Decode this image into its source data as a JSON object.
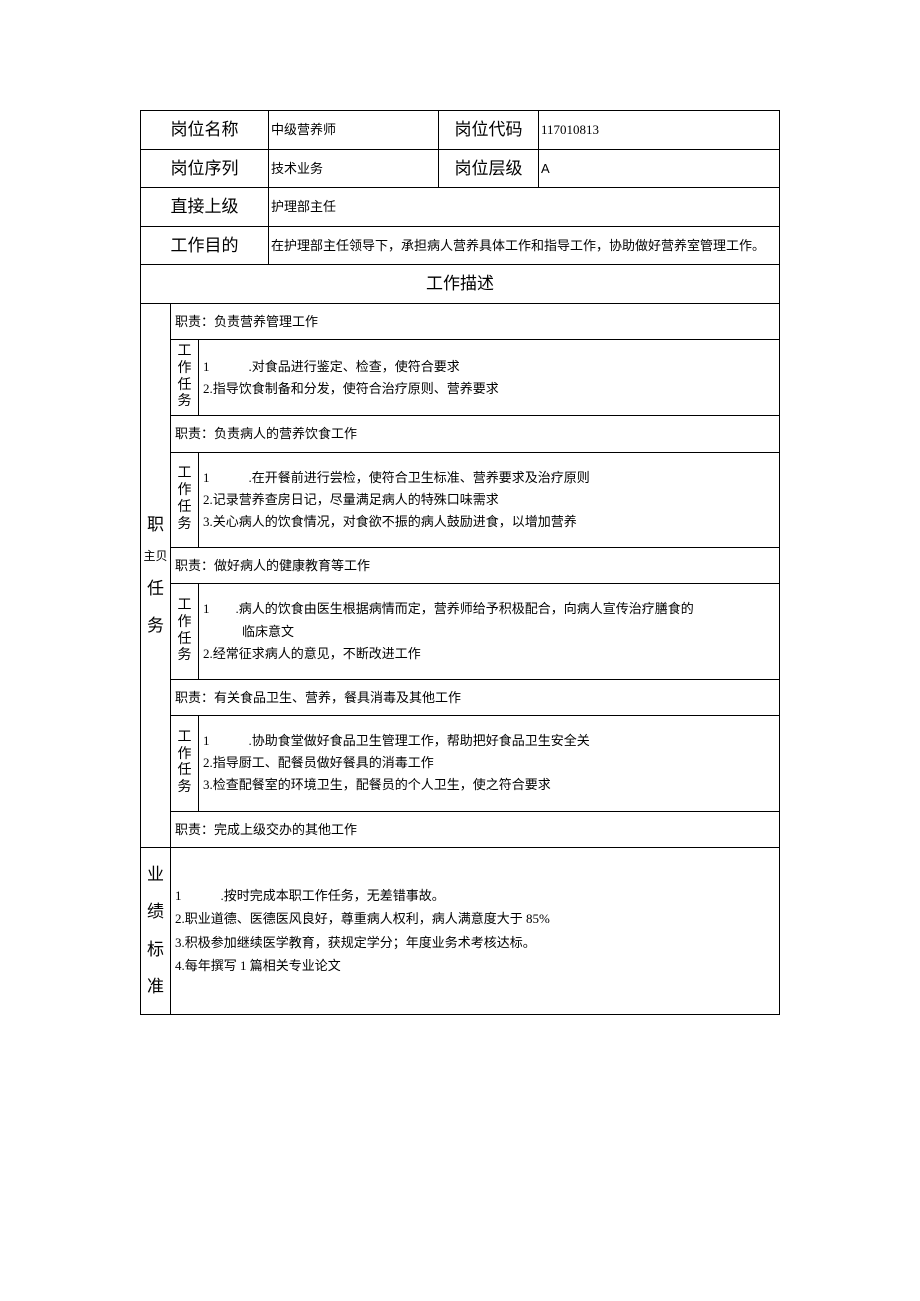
{
  "header": {
    "positionNameLabel": "岗位名称",
    "positionNameValue": "中级营养师",
    "positionCodeLabel": "岗位代码",
    "positionCodeValue": "117010813",
    "positionSeriesLabel": "岗位序列",
    "positionSeriesValue": "技术业务",
    "positionLevelLabel": "岗位层级",
    "positionLevelValue": "A",
    "supervisorLabel": "直接上级",
    "supervisorValue": "护理部主任",
    "purposeLabel": "工作目的",
    "purposeValue": "在护理部主任领导下，承担病人营养具体工作和指导工作，协助做好营养室管理工作。"
  },
  "descTitle": "工作描述",
  "rowHeader": {
    "duties": "职\n主贝\n任\n务",
    "dutiesLine1": "职",
    "dutiesLine2": "主贝",
    "dutiesLine3": "任",
    "dutiesLine4": "务",
    "task": "工作任务",
    "perf": "业\n绩\n标\n准",
    "perfC1": "业",
    "perfC2": "绩",
    "perfC3": "标",
    "perfC4": "准"
  },
  "duties": [
    {
      "title": "职责：负责营养管理工作",
      "tasks": "1　　　.对食品进行鉴定、检查，使符合要求\n2.指导饮食制备和分发，使符合治疗原则、营养要求"
    },
    {
      "title": "职责：负责病人的营养饮食工作",
      "tasks": "1　　　.在开餐前进行尝检，使符合卫生标准、营养要求及治疗原则\n2.记录营养查房日记，尽量满足病人的特殊口味需求\n3.关心病人的饮食情况，对食欲不振的病人鼓励进食，以增加营养"
    },
    {
      "title": "职责：做好病人的健康教育等工作",
      "tasks": "1　　.病人的饮食由医生根据病情而定，营养师给予积极配合，向病人宣传治疗膳食的\n　　　临床意文\n2.经常征求病人的意见，不断改进工作"
    },
    {
      "title": "职责：有关食品卫生、营养，餐具消毒及其他工作",
      "tasks": "1　　　.协助食堂做好食品卫生管理工作，帮助把好食品卫生安全关\n2.指导厨工、配餐员做好餐具的消毒工作\n3.检查配餐室的环境卫生，配餐员的个人卫生，使之符合要求"
    },
    {
      "title": "职责：完成上级交办的其他工作",
      "tasks": null
    }
  ],
  "performance": "1　　　.按时完成本职工作任务，无差错事故。\n2.职业道德、医德医风良好，尊重病人权利，病人满意度大于 85%\n3.积极参加继续医学教育，获规定学分；年度业务术考核达标。\n4.每年撰写 1 篇相关专业论文",
  "colors": {
    "border": "#000000",
    "text": "#000000",
    "bg": "#ffffff"
  }
}
